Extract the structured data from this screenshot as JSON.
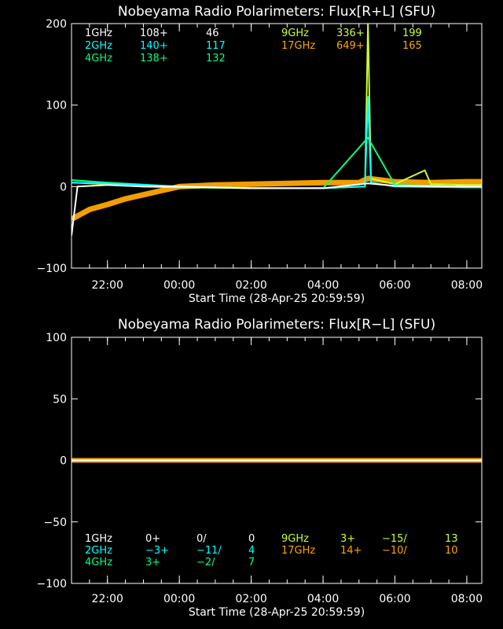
{
  "colors": {
    "background": "#000000",
    "axes": "#ffffff",
    "1GHz": "#ffffff",
    "2GHz": "#00ffff",
    "4GHz": "#00ff7f",
    "9GHz": "#c8ff32",
    "17GHz": "#ffa500"
  },
  "chart_data": [
    {
      "type": "line",
      "title": "Nobeyama Radio Polarimeters: Flux[R+L] (SFU)",
      "xlabel": "Start Time (28-Apr-25 20:59:59)",
      "ylabel": "",
      "ylim": [
        -100,
        200
      ],
      "xlim": [
        "20:59:59",
        "08:25"
      ],
      "grid": false,
      "x_ticks": [
        "22:00",
        "00:00",
        "02:00",
        "04:00",
        "06:00",
        "08:00"
      ],
      "y_ticks": [
        "-100",
        "0",
        "100",
        "200"
      ],
      "legend": [
        {
          "name": "1GHz",
          "a": "108+",
          "b": "46"
        },
        {
          "name": "2GHz",
          "a": "140+",
          "b": "117"
        },
        {
          "name": "4GHz",
          "a": "138+",
          "b": "132"
        },
        {
          "name": "9GHz",
          "a": "336+",
          "b": "199"
        },
        {
          "name": "17GHz",
          "a": "649+",
          "b": "165"
        }
      ],
      "series": [
        {
          "name": "17GHz",
          "x": [
            "21:00",
            "21:30",
            "22:00",
            "22:30",
            "23:00",
            "23:30",
            "00:00",
            "01:00",
            "02:00",
            "03:00",
            "04:00",
            "05:00",
            "05:15",
            "06:00",
            "07:00",
            "08:00",
            "08:25"
          ],
          "values": [
            -40,
            -28,
            -22,
            -15,
            -10,
            -5,
            0,
            2,
            3,
            4,
            5,
            5,
            10,
            6,
            5,
            6,
            6
          ]
        },
        {
          "name": "9GHz",
          "x": [
            "21:00",
            "22:00",
            "23:00",
            "00:00",
            "02:00",
            "04:00",
            "05:10",
            "05:15",
            "05:20",
            "06:00",
            "06:50",
            "07:00",
            "08:00",
            "08:25"
          ],
          "values": [
            5,
            3,
            0,
            -1,
            -2,
            -2,
            0,
            200,
            10,
            3,
            20,
            3,
            2,
            2
          ]
        },
        {
          "name": "4GHz",
          "x": [
            "21:00",
            "22:00",
            "00:00",
            "02:00",
            "04:00",
            "05:15",
            "06:00",
            "08:00",
            "08:25"
          ],
          "values": [
            8,
            5,
            0,
            -2,
            -2,
            60,
            2,
            0,
            0
          ]
        },
        {
          "name": "2GHz",
          "x": [
            "21:00",
            "22:00",
            "00:00",
            "02:00",
            "04:00",
            "05:10",
            "05:15",
            "05:20",
            "06:00",
            "08:00",
            "08:25"
          ],
          "values": [
            5,
            4,
            0,
            -2,
            -2,
            0,
            110,
            5,
            0,
            -1,
            -1
          ]
        },
        {
          "name": "1GHz",
          "x": [
            "21:00",
            "21:10",
            "22:00",
            "23:00",
            "00:00",
            "02:00",
            "04:00",
            "05:15",
            "06:00",
            "08:00",
            "08:25"
          ],
          "values": [
            -60,
            0,
            2,
            0,
            0,
            -2,
            -2,
            4,
            1,
            0,
            0
          ]
        }
      ]
    },
    {
      "type": "line",
      "title": "Nobeyama Radio Polarimeters: Flux[R−L] (SFU)",
      "xlabel": "Start Time (28-Apr-25 20:59:59)",
      "ylabel": "",
      "ylim": [
        -100,
        100
      ],
      "xlim": [
        "20:59:59",
        "08:25"
      ],
      "grid": false,
      "x_ticks": [
        "22:00",
        "00:00",
        "02:00",
        "04:00",
        "06:00",
        "08:00"
      ],
      "y_ticks": [
        "-100",
        "-50",
        "0",
        "50",
        "100"
      ],
      "legend": [
        {
          "name": "1GHz",
          "a": "0+",
          "b": "0/",
          "c": "0"
        },
        {
          "name": "2GHz",
          "a": "−3+",
          "b": "−11/",
          "c": "4"
        },
        {
          "name": "4GHz",
          "a": "3+",
          "b": "−2/",
          "c": "7"
        },
        {
          "name": "9GHz",
          "a": "3+",
          "b": "−15/",
          "c": "13"
        },
        {
          "name": "17GHz",
          "a": "14+",
          "b": "−10/",
          "c": "10"
        }
      ],
      "series": [
        {
          "name": "17GHz",
          "x": [
            "21:00",
            "22:00",
            "23:00",
            "00:00",
            "01:00",
            "02:00",
            "03:00",
            "04:00",
            "05:00",
            "06:00",
            "07:00",
            "08:00",
            "08:25"
          ],
          "values": [
            0,
            0,
            0,
            0,
            0,
            0,
            0,
            0,
            0,
            0,
            0,
            0,
            0
          ]
        },
        {
          "name": "9GHz",
          "x": [
            "21:00",
            "23:00",
            "01:00",
            "03:00",
            "05:00",
            "07:00",
            "08:25"
          ],
          "values": [
            0,
            0,
            0,
            0,
            0,
            0,
            0
          ]
        },
        {
          "name": "4GHz",
          "x": [
            "21:00",
            "23:00",
            "01:00",
            "03:00",
            "05:00",
            "07:00",
            "08:25"
          ],
          "values": [
            0,
            0,
            0,
            0,
            0,
            0,
            0
          ]
        },
        {
          "name": "2GHz",
          "x": [
            "21:00",
            "23:00",
            "01:00",
            "03:00",
            "05:00",
            "07:00",
            "08:25"
          ],
          "values": [
            0,
            0,
            0,
            0,
            0,
            0,
            0
          ]
        },
        {
          "name": "1GHz",
          "x": [
            "21:00",
            "23:00",
            "01:00",
            "03:00",
            "05:00",
            "07:00",
            "08:25"
          ],
          "values": [
            0,
            0,
            0,
            0,
            0,
            0,
            0
          ]
        }
      ]
    }
  ]
}
